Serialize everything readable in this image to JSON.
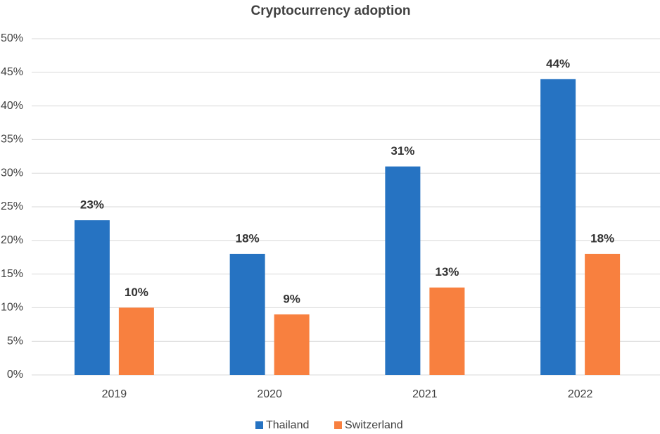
{
  "chart_data": {
    "type": "bar",
    "title": "Cryptocurrency adoption",
    "categories": [
      "2019",
      "2020",
      "2021",
      "2022"
    ],
    "series": [
      {
        "name": "Thailand",
        "color": "#2673c2",
        "values": [
          23,
          18,
          31,
          44
        ],
        "value_labels": [
          "23%",
          "18%",
          "31%",
          "44%"
        ]
      },
      {
        "name": "Switzerland",
        "color": "#f8803f",
        "values": [
          10,
          9,
          13,
          18
        ],
        "value_labels": [
          "10%",
          "9%",
          "13%",
          "18%"
        ]
      }
    ],
    "ylim": [
      0,
      50
    ],
    "yticks": [
      {
        "value": 0,
        "label": "0%"
      },
      {
        "value": 5,
        "label": "5%"
      },
      {
        "value": 10,
        "label": "10%"
      },
      {
        "value": 15,
        "label": "15%"
      },
      {
        "value": 20,
        "label": "20%"
      },
      {
        "value": 25,
        "label": "25%"
      },
      {
        "value": 30,
        "label": "30%"
      },
      {
        "value": 35,
        "label": "35%"
      },
      {
        "value": 40,
        "label": "40%"
      },
      {
        "value": 45,
        "label": "45%"
      },
      {
        "value": 50,
        "label": "50%"
      }
    ],
    "grid": true,
    "legend": "bottom"
  }
}
